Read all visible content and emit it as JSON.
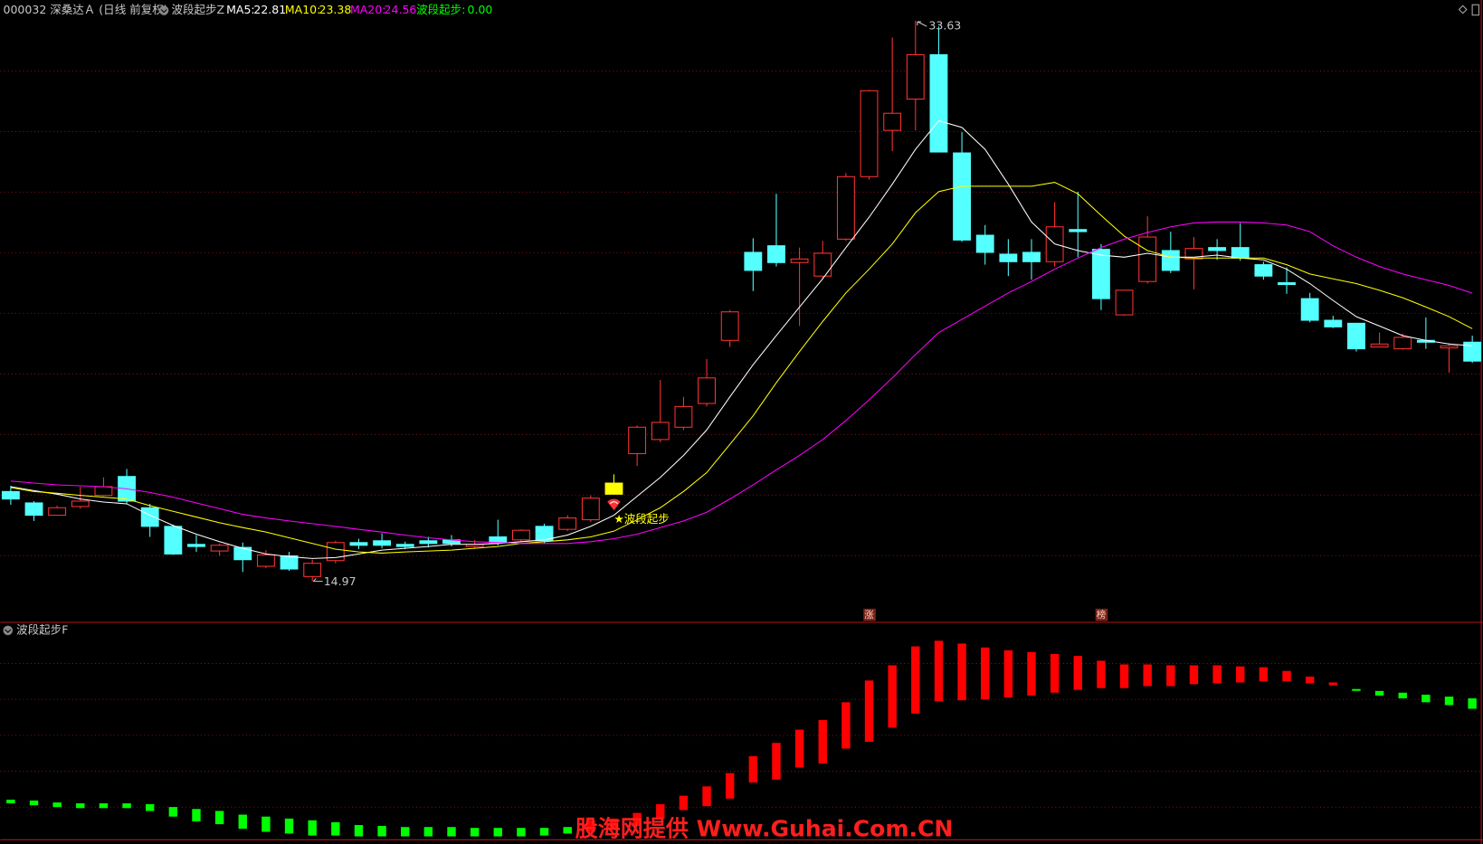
{
  "chart_data": [
    {
      "type": "candlestick",
      "title": "000032 深桑达Ａ (日线 前复权)",
      "indicator": {
        "title": "波段起步Z",
        "name": "波段起步:",
        "value": 0,
        "value_label": "0.00",
        "color": "#00ff00"
      },
      "up_color": "#ff3232",
      "down_color": "#54ffff",
      "ylim": [
        13.62,
        34.32
      ],
      "open": [
        17.96,
        17.58,
        17.17,
        17.46,
        17.83,
        18.46,
        17.42,
        16.8,
        16.2,
        15.98,
        16.1,
        15.47,
        15.82,
        15.13,
        15.66,
        16.26,
        16.32,
        16.2,
        16.32,
        16.35,
        16.13,
        16.45,
        16.35,
        16.8,
        16.7,
        17.02,
        17.87,
        19.22,
        19.69,
        20.1,
        20.89,
        22.99,
        25.92,
        26.14,
        25.58,
        25.13,
        26.36,
        28.44,
        29.98,
        31.02,
        32.5,
        29.23,
        26.49,
        25.86,
        25.92,
        25.61,
        26.68,
        26.02,
        23.84,
        24.95,
        25.98,
        25.7,
        26.08,
        26.08,
        25.51,
        24.91,
        24.38,
        23.66,
        23.56,
        22.77,
        22.71,
        22.99,
        22.74,
        22.93
      ],
      "high": [
        18.15,
        17.64,
        17.49,
        18.12,
        18.43,
        18.71,
        17.55,
        16.86,
        16.51,
        16.23,
        16.26,
        16.01,
        15.95,
        15.69,
        16.32,
        16.39,
        16.57,
        16.29,
        16.45,
        16.51,
        16.35,
        17.02,
        16.7,
        16.89,
        17.17,
        17.83,
        18.53,
        20.16,
        21.67,
        21.11,
        22.37,
        24.0,
        26.39,
        27.87,
        26.08,
        26.3,
        28.56,
        31.33,
        33.07,
        33.63,
        33.44,
        29.92,
        26.83,
        26.36,
        26.36,
        27.59,
        27.94,
        26.2,
        24.66,
        27.12,
        26.61,
        26.43,
        26.36,
        26.9,
        25.61,
        25.42,
        24.57,
        23.81,
        23.56,
        23.25,
        23.22,
        23.75,
        22.9,
        23.15
      ],
      "low": [
        17.52,
        16.98,
        17.17,
        17.39,
        17.8,
        17.55,
        16.45,
        15.85,
        15.95,
        15.82,
        15.28,
        15.41,
        15.32,
        14.97,
        15.57,
        16.04,
        16.07,
        16.04,
        16.1,
        16.13,
        16.07,
        16.17,
        16.29,
        16.23,
        16.64,
        16.95,
        17.87,
        18.81,
        19.6,
        20.01,
        20.79,
        22.77,
        24.63,
        25.45,
        23.47,
        25.04,
        26.3,
        28.34,
        29.29,
        29.98,
        29.26,
        26.27,
        25.51,
        25.13,
        25.01,
        25.45,
        25.76,
        24.0,
        23.81,
        24.88,
        25.23,
        24.69,
        25.67,
        25.64,
        25.01,
        24.54,
        23.59,
        23.4,
        22.62,
        22.77,
        22.68,
        22.71,
        21.92,
        22.24
      ],
      "close": [
        17.71,
        17.17,
        17.42,
        17.64,
        18.12,
        17.64,
        16.8,
        15.88,
        16.13,
        16.17,
        15.69,
        15.85,
        15.38,
        15.57,
        16.26,
        16.17,
        16.17,
        16.13,
        16.23,
        16.23,
        16.2,
        16.26,
        16.67,
        16.32,
        17.08,
        17.74,
        18.24,
        20.1,
        20.26,
        20.79,
        21.74,
        23.94,
        25.32,
        25.58,
        25.7,
        25.89,
        28.44,
        31.3,
        30.55,
        32.5,
        29.26,
        26.33,
        25.92,
        25.61,
        25.61,
        26.77,
        26.61,
        24.38,
        24.66,
        26.43,
        25.32,
        26.05,
        25.98,
        25.73,
        25.13,
        24.85,
        23.66,
        23.44,
        22.71,
        22.87,
        23.09,
        22.93,
        22.81,
        22.3
      ],
      "series": [
        {
          "name": "MA5:",
          "color": "#ffffff",
          "values": [
            18.12,
            17.99,
            17.87,
            17.71,
            17.61,
            17.55,
            17.17,
            16.83,
            16.54,
            16.29,
            16.07,
            15.88,
            15.79,
            15.73,
            15.76,
            15.88,
            16.01,
            16.07,
            16.13,
            16.2,
            16.2,
            16.23,
            16.29,
            16.35,
            16.51,
            16.8,
            17.17,
            17.8,
            18.43,
            19.16,
            20.01,
            21.11,
            22.18,
            23.15,
            24.1,
            25.04,
            26.08,
            27.09,
            28.19,
            29.35,
            30.3,
            30.08,
            29.35,
            28.19,
            26.93,
            26.2,
            25.98,
            25.83,
            25.76,
            25.89,
            25.76,
            25.76,
            25.83,
            25.73,
            25.67,
            25.36,
            24.88,
            24.32,
            23.78,
            23.47,
            23.15,
            22.99,
            22.87,
            22.81
          ]
        },
        {
          "name": "MA10:",
          "color": "#ffff00",
          "values": [
            18.09,
            17.96,
            17.9,
            17.83,
            17.77,
            17.71,
            17.49,
            17.3,
            17.11,
            16.92,
            16.76,
            16.61,
            16.42,
            16.23,
            16.04,
            15.95,
            15.91,
            15.95,
            15.98,
            16.01,
            16.07,
            16.13,
            16.23,
            16.29,
            16.35,
            16.45,
            16.64,
            17.02,
            17.42,
            17.96,
            18.59,
            19.53,
            20.48,
            21.58,
            22.62,
            23.62,
            24.57,
            25.36,
            26.2,
            27.24,
            27.94,
            28.12,
            28.12,
            28.12,
            28.12,
            28.25,
            27.87,
            27.15,
            26.46,
            25.98,
            25.76,
            25.73,
            25.73,
            25.73,
            25.73,
            25.51,
            25.2,
            25.04,
            24.88,
            24.66,
            24.41,
            24.1,
            23.78,
            23.38
          ]
        },
        {
          "name": "MA20:",
          "color": "#ff00ff",
          "values": [
            18.31,
            18.24,
            18.18,
            18.15,
            18.12,
            18.05,
            17.93,
            17.77,
            17.58,
            17.39,
            17.2,
            17.08,
            16.98,
            16.89,
            16.8,
            16.7,
            16.61,
            16.51,
            16.42,
            16.35,
            16.29,
            16.26,
            16.23,
            16.23,
            16.23,
            16.29,
            16.39,
            16.54,
            16.76,
            16.98,
            17.27,
            17.71,
            18.18,
            18.68,
            19.16,
            19.69,
            20.32,
            21.01,
            21.74,
            22.52,
            23.25,
            23.69,
            24.13,
            24.57,
            24.95,
            25.36,
            25.73,
            26.08,
            26.36,
            26.58,
            26.77,
            26.9,
            26.93,
            26.93,
            26.9,
            26.83,
            26.61,
            26.14,
            25.76,
            25.45,
            25.2,
            25.01,
            24.82,
            24.56
          ]
        }
      ],
      "signal": {
        "index": 26,
        "label": "★波段起步",
        "color": "#ffff00"
      },
      "tags": [
        {
          "index": 37,
          "label": "涨"
        },
        {
          "index": 47,
          "label": "榜"
        }
      ]
    },
    {
      "type": "stick",
      "title": "波段起步F",
      "up_color": "#ff0000",
      "down_color": "#00ff00",
      "ylim": [
        0,
        100
      ],
      "series": [
        {
          "values": [
            17.4,
            16.5,
            15.7,
            15.2,
            15.2,
            15.2,
            13.9,
            11.3,
            9.1,
            7.8,
            5.7,
            4.3,
            3.5,
            2.6,
            2.6,
            2.2,
            2.2,
            2.2,
            2.2,
            2.2,
            2.2,
            2.2,
            2.2,
            2.6,
            3.5,
            9.6,
            10.4,
            13.0,
            17.0,
            20.9,
            25.2,
            31.3,
            39.1,
            45.2,
            51.3,
            55.7,
            63.9,
            73.9,
            80.9,
            89.6,
            92.2,
            90.9,
            89.1,
            87.8,
            87.0,
            86.1,
            85.2,
            83.0,
            81.3,
            81.3,
            80.9,
            80.9,
            80.9,
            80.4,
            80.0,
            78.3,
            75.7,
            73.0,
            69.6,
            67.0,
            65.7,
            63.9,
            62.6,
            60.9
          ]
        },
        {
          "values": [
            19.1,
            18.7,
            17.8,
            17.4,
            17.4,
            17.4,
            17.0,
            15.7,
            14.8,
            13.9,
            12.2,
            11.3,
            10.4,
            9.6,
            8.7,
            7.4,
            7.0,
            6.5,
            6.5,
            6.5,
            6.1,
            6.1,
            6.1,
            6.1,
            6.5,
            4.3,
            5.2,
            7.0,
            10.4,
            14.3,
            16.1,
            19.6,
            27.0,
            28.3,
            33.9,
            35.7,
            42.6,
            45.7,
            52.2,
            58.7,
            64.3,
            64.8,
            65.2,
            66.1,
            67.0,
            68.3,
            69.6,
            70.4,
            70.4,
            71.3,
            71.3,
            72.2,
            72.6,
            73.0,
            73.5,
            73.5,
            72.6,
            71.7,
            70.0,
            69.1,
            68.3,
            67.4,
            66.5,
            65.7
          ]
        }
      ]
    }
  ],
  "watermark": "股海网提供 Www.Guhai.Com.CN"
}
